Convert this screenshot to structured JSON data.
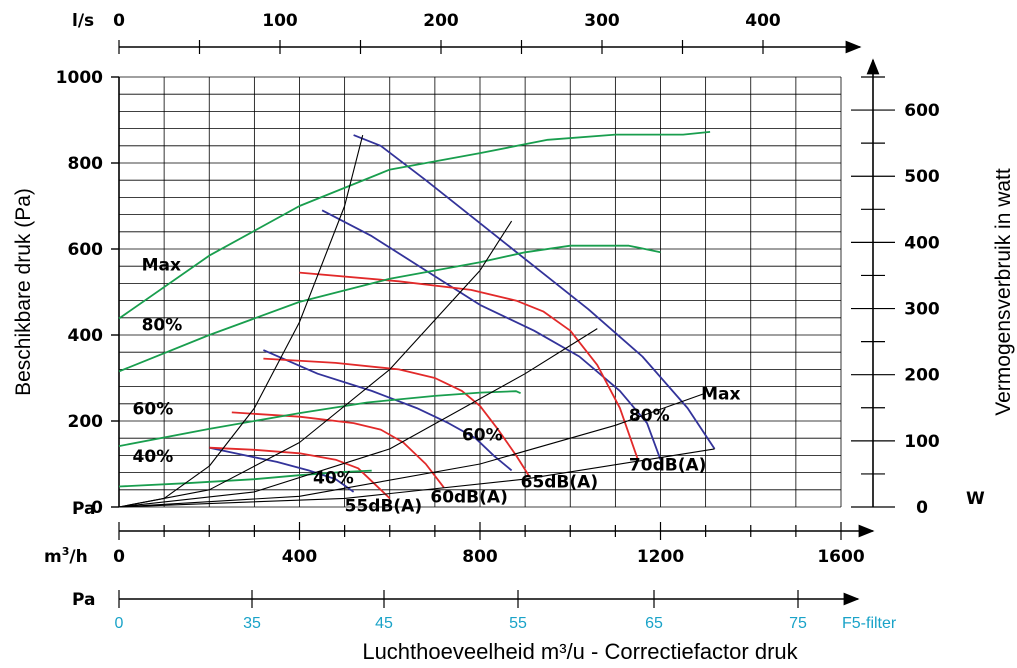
{
  "chart_data": {
    "type": "line",
    "title": "",
    "xlabel": "Luchthoeveelheid m³/u - Correctiefactor druk",
    "ylabel": "Beschikbare druk (Pa)",
    "y2label": "Vermogensverbruik in watt",
    "xlim": [
      0,
      1600
    ],
    "ylim": [
      0,
      1000
    ],
    "y2lim": [
      0,
      650
    ],
    "grid": true,
    "axes": {
      "x_unit": "m3/h",
      "y_unit": "Pa",
      "y2_unit": "W",
      "x_ticks": [
        "0",
        "400",
        "800",
        "1200",
        "1600"
      ],
      "y_ticks": [
        "0",
        "200",
        "400",
        "600",
        "800",
        "1000"
      ],
      "y2_ticks": [
        "0",
        "100",
        "200",
        "300",
        "400",
        "500",
        "600"
      ],
      "top_unit": "l/s",
      "top_ticks": [
        "0",
        "100",
        "200",
        "300",
        "400"
      ],
      "filter_unit": "Pa",
      "filter_ticks": [
        "0",
        "35",
        "45",
        "55",
        "65",
        "75"
      ],
      "filter_label": "F5-filter"
    },
    "series": [
      {
        "group": "fan",
        "label": "Max",
        "color": "#33339a",
        "x": [
          520,
          580,
          680,
          800,
          920,
          1040,
          1160,
          1260,
          1320
        ],
        "y": [
          865,
          840,
          760,
          660,
          560,
          460,
          350,
          230,
          135
        ]
      },
      {
        "group": "fan",
        "label": "80%",
        "color": "#33339a",
        "x": [
          450,
          560,
          680,
          800,
          920,
          1020,
          1110,
          1170,
          1200
        ],
        "y": [
          690,
          630,
          550,
          470,
          410,
          350,
          270,
          195,
          110
        ]
      },
      {
        "group": "fan",
        "label": "60%",
        "color": "#33339a",
        "x": [
          320,
          440,
          560,
          660,
          730,
          790,
          830,
          870
        ],
        "y": [
          365,
          310,
          270,
          230,
          195,
          160,
          120,
          85
        ]
      },
      {
        "group": "fan",
        "label": "40%",
        "color": "#33339a",
        "x": [
          200,
          280,
          350,
          420,
          480,
          520
        ],
        "y": [
          138,
          120,
          105,
          85,
          65,
          35
        ]
      },
      {
        "group": "sound",
        "label": "55dB(A)",
        "color": "#e22a2a",
        "x": [
          200,
          300,
          400,
          480,
          530,
          560,
          600
        ],
        "y": [
          138,
          133,
          125,
          110,
          90,
          60,
          20
        ]
      },
      {
        "group": "sound",
        "label": "60dB(A)",
        "color": "#e22a2a",
        "x": [
          250,
          400,
          520,
          580,
          630,
          680,
          720
        ],
        "y": [
          220,
          210,
          195,
          180,
          150,
          100,
          45
        ]
      },
      {
        "group": "sound",
        "label": "65dB(A)",
        "color": "#e22a2a",
        "x": [
          320,
          480,
          620,
          700,
          760,
          800,
          840,
          880,
          910
        ],
        "y": [
          345,
          335,
          320,
          300,
          270,
          235,
          180,
          120,
          70
        ]
      },
      {
        "group": "sound",
        "label": "70dB(A)",
        "color": "#e22a2a",
        "x": [
          400,
          620,
          780,
          880,
          940,
          1000,
          1060,
          1110,
          1150
        ],
        "y": [
          545,
          525,
          505,
          480,
          455,
          410,
          330,
          230,
          110
        ]
      },
      {
        "group": "power",
        "axis": "right",
        "label": "Max",
        "color": "#199e4e",
        "x": [
          0,
          200,
          400,
          600,
          800,
          950,
          1100,
          1250,
          1310
        ],
        "y": [
          285,
          380,
          455,
          510,
          535,
          555,
          563,
          563,
          567
        ]
      },
      {
        "group": "power",
        "axis": "right",
        "label": "80%",
        "color": "#199e4e",
        "x": [
          0,
          200,
          400,
          600,
          800,
          900,
          1000,
          1130,
          1200
        ],
        "y": [
          205,
          260,
          310,
          345,
          370,
          385,
          395,
          395,
          385
        ]
      },
      {
        "group": "power",
        "axis": "right",
        "label": "60%",
        "color": "#199e4e",
        "x": [
          0,
          200,
          400,
          550,
          700,
          800,
          880,
          890
        ],
        "y": [
          92,
          118,
          142,
          158,
          168,
          173,
          175,
          172
        ]
      },
      {
        "group": "power",
        "axis": "right",
        "label": "40%",
        "color": "#199e4e",
        "x": [
          0,
          150,
          300,
          400,
          500,
          560
        ],
        "y": [
          31,
          36,
          42,
          48,
          53,
          55
        ]
      },
      {
        "group": "system",
        "label": "",
        "color": "#000000",
        "x": [
          0,
          100,
          200,
          300,
          400,
          500,
          540
        ],
        "y": [
          0,
          20,
          95,
          230,
          430,
          700,
          865
        ]
      },
      {
        "group": "system",
        "label": "",
        "color": "#000000",
        "x": [
          0,
          200,
          400,
          600,
          800,
          870
        ],
        "y": [
          0,
          40,
          150,
          320,
          550,
          665
        ]
      },
      {
        "group": "system",
        "label": "",
        "color": "#000000",
        "x": [
          0,
          300,
          600,
          900,
          1060
        ],
        "y": [
          0,
          35,
          135,
          310,
          415
        ]
      },
      {
        "group": "system",
        "label": "",
        "color": "#000000",
        "x": [
          0,
          400,
          800,
          1100,
          1300
        ],
        "y": [
          0,
          25,
          100,
          190,
          265
        ]
      },
      {
        "group": "system",
        "label": "",
        "color": "#000000",
        "x": [
          0,
          500,
          900,
          1200,
          1320
        ],
        "y": [
          0,
          20,
          65,
          115,
          135
        ]
      }
    ],
    "annotations": [
      {
        "text": "Max",
        "x": 50,
        "y": 550,
        "anchor": "start"
      },
      {
        "text": "80%",
        "x": 50,
        "y": 410,
        "anchor": "start"
      },
      {
        "text": "60%",
        "x": 30,
        "y": 215,
        "anchor": "start"
      },
      {
        "text": "40%",
        "x": 30,
        "y": 105,
        "anchor": "start"
      },
      {
        "text": "Max",
        "x": 1290,
        "y": 250,
        "anchor": "start"
      },
      {
        "text": "80%",
        "x": 1130,
        "y": 200,
        "anchor": "start"
      },
      {
        "text": "60%",
        "x": 760,
        "y": 155,
        "anchor": "start"
      },
      {
        "text": "40%",
        "x": 430,
        "y": 55,
        "anchor": "start"
      },
      {
        "text": "55dB(A)",
        "x": 500,
        "y": -10,
        "anchor": "start"
      },
      {
        "text": "60dB(A)",
        "x": 690,
        "y": 10,
        "anchor": "start"
      },
      {
        "text": "65dB(A)",
        "x": 890,
        "y": 45,
        "anchor": "start"
      },
      {
        "text": "70dB(A)",
        "x": 1130,
        "y": 85,
        "anchor": "start"
      }
    ]
  }
}
